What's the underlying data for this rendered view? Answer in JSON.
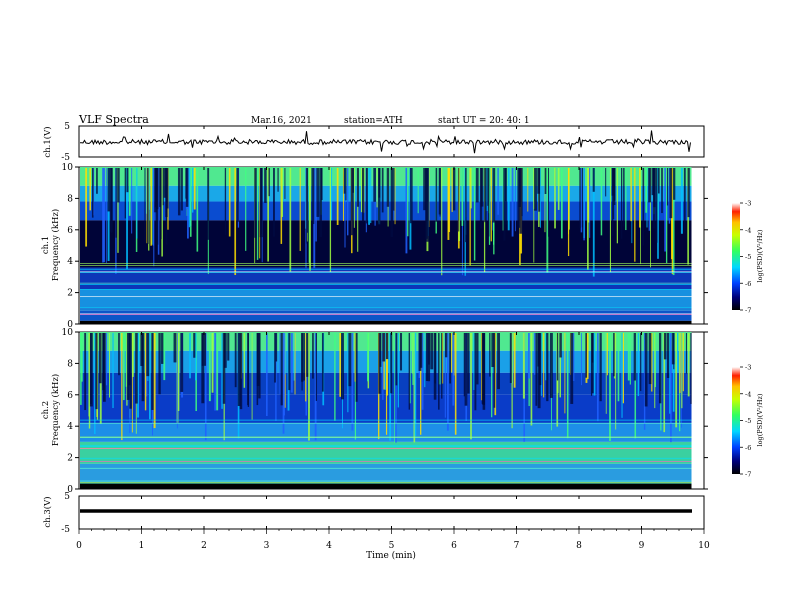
{
  "header": {
    "title": "VLF  Spectra",
    "date": "Mar.16, 2021",
    "station": "station=ATH",
    "start": "start  UT  =    20: 40: 1"
  },
  "chart_data": {
    "type": "heatmap",
    "xlabel": "Time  (min)",
    "xlim": [
      0,
      10
    ],
    "x_ticks": [
      "0",
      "1",
      "2",
      "3",
      "4",
      "5",
      "6",
      "7",
      "8",
      "9",
      "10"
    ],
    "panels": [
      {
        "id": "ch1-waveform",
        "type": "line",
        "ylabel": "ch.1(V)",
        "ylim": [
          -5,
          5
        ],
        "y_ticks": [
          "5",
          "-5"
        ],
        "data_extent_min": 9.8
      },
      {
        "id": "ch1-spectrogram",
        "type": "heatmap",
        "label_line1": "ch.1",
        "ylabel": "Frequency  (kHz)",
        "ylim": [
          0,
          10
        ],
        "y_ticks": [
          "0",
          "2",
          "4",
          "6",
          "8",
          "10"
        ],
        "colorbar": {
          "label": "log(PSD)(V²/Hz)",
          "range": [
            -7,
            -3
          ],
          "ticks": [
            "-3",
            "-4",
            "-5",
            "-6",
            "-7"
          ]
        }
      },
      {
        "id": "ch2-spectrogram",
        "type": "heatmap",
        "label_line1": "ch.2",
        "ylabel": "Frequency  (kHz)",
        "ylim": [
          0,
          10
        ],
        "y_ticks": [
          "0",
          "2",
          "4",
          "6",
          "8",
          "10"
        ],
        "colorbar": {
          "label": "log(PSD)(V²/Hz)",
          "range": [
            -7,
            -3
          ],
          "ticks": [
            "-3",
            "-4",
            "-5",
            "-6",
            "-7"
          ]
        }
      },
      {
        "id": "ch3-waveform",
        "type": "line",
        "ylabel": "ch.3(V)",
        "ylim": [
          -5,
          5
        ],
        "y_ticks": [
          "5",
          "-5"
        ],
        "data_extent_min": 9.8
      }
    ]
  }
}
